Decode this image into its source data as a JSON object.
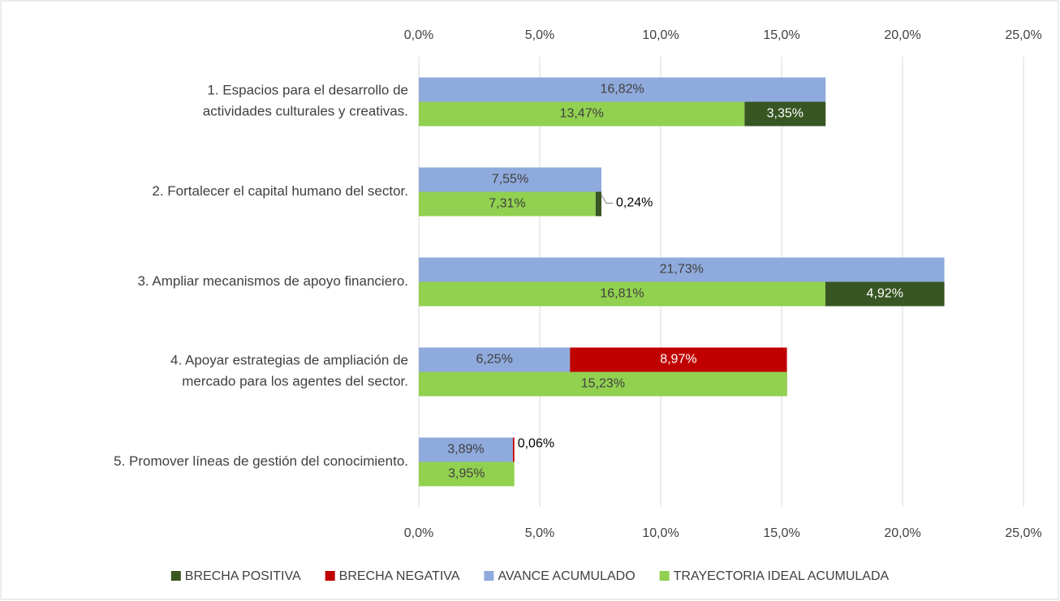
{
  "chart_data": {
    "type": "bar",
    "orientation": "horizontal",
    "categories": [
      "1. Espacios para el desarrollo de actividades culturales y creativas.",
      "2. Fortalecer el capital humano del sector.",
      "3. Ampliar mecanismos de apoyo financiero.",
      "4. Apoyar estrategias de ampliación de mercado para los agentes del sector.",
      "5. Promover líneas de gestión del conocimiento."
    ],
    "series": [
      {
        "name": "BRECHA POSITIVA",
        "color": "#375623",
        "values": [
          3.35,
          0.24,
          4.92,
          null,
          null
        ],
        "value_labels": [
          "3,35%",
          "0,24%",
          "4,92%",
          null,
          null
        ]
      },
      {
        "name": "BRECHA NEGATIVA",
        "color": "#c00000",
        "values": [
          null,
          null,
          null,
          8.97,
          0.06
        ],
        "value_labels": [
          null,
          null,
          null,
          "8,97%",
          "0,06%"
        ]
      },
      {
        "name": "AVANCE ACUMULADO",
        "color": "#8faadc",
        "values": [
          16.82,
          7.55,
          21.73,
          6.25,
          3.89
        ],
        "value_labels": [
          "16,82%",
          "7,55%",
          "21,73%",
          "6,25%",
          "3,89%"
        ]
      },
      {
        "name": "TRAYECTORIA IDEAL ACUMULADA",
        "color": "#92d050",
        "values": [
          13.47,
          7.31,
          16.81,
          15.23,
          3.95
        ],
        "value_labels": [
          "13,47%",
          "7,31%",
          "16,81%",
          "15,23%",
          "3,95%"
        ]
      }
    ],
    "xlim": [
      0,
      25
    ],
    "xticks": [
      {
        "value": 0,
        "label": "0,0%"
      },
      {
        "value": 5,
        "label": "5,0%"
      },
      {
        "value": 10,
        "label": "10,0%"
      },
      {
        "value": 15,
        "label": "15,0%"
      },
      {
        "value": 20,
        "label": "20,0%"
      },
      {
        "value": 25,
        "label": "25,0%"
      }
    ],
    "grid": true,
    "legend": "bottom"
  }
}
